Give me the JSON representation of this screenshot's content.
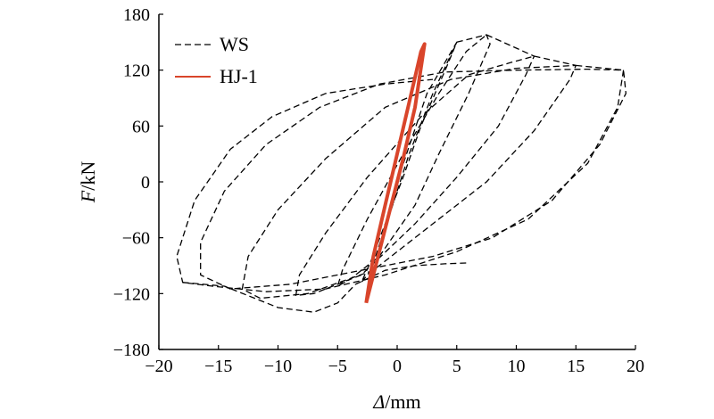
{
  "chart_data": {
    "type": "line",
    "title": "",
    "xlabel_var": "Δ",
    "xlabel_unit": "/mm",
    "ylabel_var": "F",
    "ylabel_unit": "/kN",
    "xlim": [
      -20,
      20
    ],
    "ylim": [
      -180,
      180
    ],
    "xticks": [
      "−20",
      "−15",
      "−10",
      "−5",
      "0",
      "5",
      "10",
      "15",
      "20"
    ],
    "yticks": [
      "−180",
      "−120",
      "−60",
      "0",
      "60",
      "120",
      "180"
    ],
    "xtick_values": [
      -20,
      -15,
      -10,
      -5,
      0,
      5,
      10,
      15,
      20
    ],
    "ytick_values": [
      -180,
      -120,
      -60,
      0,
      60,
      120,
      180
    ],
    "grid": false,
    "legend_position": "top-left",
    "series": [
      {
        "name": "WS",
        "color": "#000000",
        "style": "dashed",
        "loops": [
          {
            "x": [
              0,
              2.5,
              5.0,
              4.2,
              2.0,
              0.5,
              -1.0,
              -2.2,
              -3.0,
              -2.2,
              -0.5,
              1.0,
              3.0,
              5.0
            ],
            "y": [
              0,
              95,
              150,
              125,
              60,
              5,
              -45,
              -85,
              -108,
              -95,
              -30,
              30,
              95,
              150
            ]
          },
          {
            "x": [
              5.0,
              7.5,
              7.8,
              6.0,
              3.5,
              1.5,
              -1.5,
              -4.0,
              -5.0,
              -4.6,
              -2.5,
              0.5,
              3.5,
              5.8,
              7.5
            ],
            "y": [
              150,
              158,
              148,
              95,
              30,
              -25,
              -80,
              -105,
              -112,
              -95,
              -40,
              30,
              95,
              140,
              158
            ]
          },
          {
            "x": [
              7.5,
              11.5,
              10.8,
              8.5,
              5.0,
              1.5,
              -3.0,
              -7.0,
              -8.5,
              -8.2,
              -6.0,
              -2.5,
              2.0,
              6.0,
              9.5,
              11.5
            ],
            "y": [
              158,
              135,
              115,
              60,
              5,
              -45,
              -100,
              -120,
              -122,
              -100,
              -55,
              5,
              70,
              115,
              128,
              135
            ]
          },
          {
            "x": [
              11.5,
              15.0,
              14.5,
              11.5,
              7.5,
              3.0,
              -2.0,
              -7.5,
              -11.5,
              -13.0,
              -12.5,
              -10.0,
              -6.0,
              -1.0,
              4.5,
              10.0,
              15.0
            ],
            "y": [
              135,
              125,
              110,
              55,
              0,
              -45,
              -95,
              -120,
              -125,
              -115,
              -80,
              -30,
              25,
              80,
              110,
              122,
              125
            ]
          },
          {
            "x": [
              15.0,
              19.0,
              19.2,
              17.0,
              13.0,
              8.0,
              3.0,
              -3.0,
              -9.0,
              -14.0,
              -16.5,
              -16.5,
              -14.5,
              -11.0,
              -6.5,
              -1.5,
              4.0,
              10.0,
              16.0,
              19.0
            ],
            "y": [
              125,
              120,
              95,
              40,
              -20,
              -60,
              -80,
              -95,
              -110,
              -115,
              -100,
              -65,
              -10,
              40,
              80,
              105,
              118,
              120,
              121,
              120
            ]
          },
          {
            "x": [
              19.0,
              18.5,
              16.0,
              11.0,
              5.0,
              -1.0,
              -6.0,
              -11.0,
              -15.5,
              -18.0,
              -18.5,
              -17.0,
              -14.0,
              -10.5,
              -6.0,
              -1.0,
              3.0
            ],
            "y": [
              120,
              80,
              20,
              -40,
              -75,
              -100,
              -115,
              -118,
              -112,
              -108,
              -80,
              -20,
              35,
              70,
              95,
              105,
              110
            ]
          },
          {
            "x": [
              -18.0,
              -14.5,
              -10.0,
              -7.0,
              -5.0,
              -3.5
            ],
            "y": [
              -108,
              -112,
              -135,
              -140,
              -130,
              -110
            ]
          },
          {
            "x": [
              -3.5,
              -1.0,
              1.5,
              4.0,
              6.0
            ],
            "y": [
              -110,
              -95,
              -90,
              -88,
              -87
            ]
          }
        ]
      },
      {
        "name": "HJ-1",
        "color": "#d9452b",
        "style": "solid",
        "loops": [
          {
            "x": [
              -2.6,
              -1.5,
              -0.5,
              0.5,
              1.5,
              2.3,
              2.0,
              1.0,
              0.0,
              -1.0,
              -2.0,
              -2.6
            ],
            "y": [
              -130,
              -75,
              -25,
              25,
              80,
              148,
              140,
              85,
              30,
              -25,
              -80,
              -130
            ]
          }
        ]
      }
    ]
  }
}
